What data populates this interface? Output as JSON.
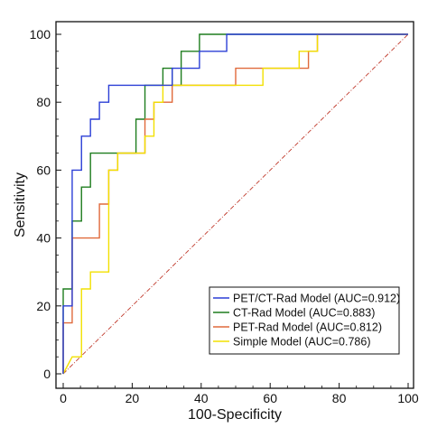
{
  "chart_data": {
    "type": "line",
    "title": "",
    "xlabel": "100-Specificity",
    "ylabel": "Sensitivity",
    "xlim": [
      0,
      100
    ],
    "ylim": [
      0,
      100
    ],
    "xticks": [
      "0",
      "20",
      "40",
      "60",
      "80",
      "100"
    ],
    "yticks": [
      "0",
      "20",
      "40",
      "60",
      "80",
      "100"
    ],
    "grid": false,
    "legend_position": "bottom-right",
    "reference_line": {
      "x": [
        0,
        100
      ],
      "y": [
        0,
        100
      ],
      "color": "#c0392b",
      "style": "dash-dot"
    },
    "series": [
      {
        "name": "PET/CT-Rad Model (AUC=0.912)",
        "color": "#2b3fd6",
        "x": [
          0,
          0,
          2.6,
          2.6,
          5.3,
          5.3,
          7.9,
          7.9,
          10.5,
          10.5,
          13.2,
          13.2,
          26.3,
          26.3,
          28.9,
          28.9,
          31.6,
          31.6,
          39.5,
          39.5,
          47.4,
          47.4,
          100
        ],
        "y": [
          0,
          20,
          20,
          60,
          60,
          70,
          70,
          75,
          75,
          80,
          80,
          85,
          85,
          85,
          85,
          85,
          85,
          90,
          90,
          95,
          95,
          100,
          100
        ]
      },
      {
        "name": "CT-Rad Model (AUC=0.883)",
        "color": "#1e7d1e",
        "x": [
          0,
          0,
          2.6,
          2.6,
          5.3,
          5.3,
          7.9,
          7.9,
          21.1,
          21.1,
          23.7,
          23.7,
          28.9,
          28.9,
          31.6,
          31.6,
          34.2,
          34.2,
          39.5,
          39.5,
          100
        ],
        "y": [
          0,
          25,
          25,
          45,
          45,
          55,
          55,
          65,
          65,
          75,
          75,
          85,
          85,
          90,
          90,
          85,
          85,
          95,
          95,
          100,
          100
        ]
      },
      {
        "name": "PET-Rad Model (AUC=0.812)",
        "color": "#e06a3b",
        "x": [
          0,
          0,
          2.6,
          2.6,
          10.5,
          10.5,
          13.2,
          13.2,
          15.8,
          15.8,
          23.7,
          23.7,
          26.3,
          26.3,
          31.6,
          31.6,
          50,
          50,
          71.1,
          71.1,
          73.7,
          73.7,
          100
        ],
        "y": [
          0,
          15,
          15,
          40,
          40,
          50,
          50,
          60,
          60,
          65,
          65,
          75,
          75,
          80,
          80,
          85,
          85,
          90,
          90,
          95,
          95,
          100,
          100
        ]
      },
      {
        "name": "Simple Model (AUC=0.786)",
        "color": "#f2e000",
        "x": [
          0,
          2.6,
          2.6,
          5.3,
          5.3,
          7.9,
          7.9,
          13.2,
          13.2,
          15.8,
          15.8,
          23.7,
          23.7,
          26.3,
          26.3,
          28.9,
          28.9,
          31.6,
          31.6,
          57.9,
          57.9,
          68.4,
          68.4,
          73.7,
          73.7,
          100
        ],
        "y": [
          0,
          5,
          5,
          5,
          25,
          25,
          30,
          30,
          60,
          60,
          65,
          65,
          70,
          70,
          80,
          80,
          85,
          85,
          85,
          85,
          90,
          90,
          95,
          95,
          100,
          100
        ]
      }
    ]
  }
}
